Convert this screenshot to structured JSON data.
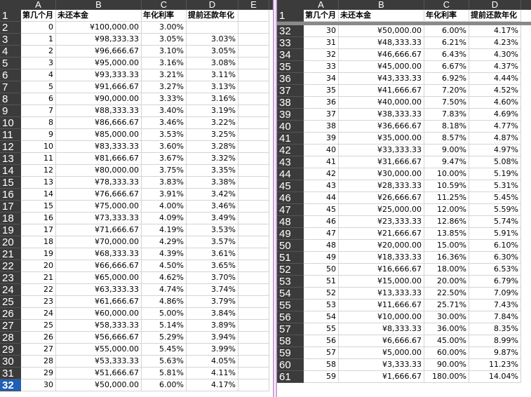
{
  "left": {
    "columns": [
      "A",
      "B",
      "C",
      "D",
      "E"
    ],
    "header_row": {
      "num": "1",
      "a": "第几个月",
      "b": "未还本金",
      "c": "年化利率",
      "d": "提前还款年化"
    },
    "active_row": "32",
    "rows": [
      {
        "num": "2",
        "a": "0",
        "b": "¥100,000.00",
        "c": "3.00%",
        "d": ""
      },
      {
        "num": "3",
        "a": "1",
        "b": "¥98,333.33",
        "c": "3.05%",
        "d": "3.03%"
      },
      {
        "num": "4",
        "a": "2",
        "b": "¥96,666.67",
        "c": "3.10%",
        "d": "3.05%"
      },
      {
        "num": "5",
        "a": "3",
        "b": "¥95,000.00",
        "c": "3.16%",
        "d": "3.08%"
      },
      {
        "num": "6",
        "a": "4",
        "b": "¥93,333.33",
        "c": "3.21%",
        "d": "3.11%"
      },
      {
        "num": "7",
        "a": "5",
        "b": "¥91,666.67",
        "c": "3.27%",
        "d": "3.13%"
      },
      {
        "num": "8",
        "a": "6",
        "b": "¥90,000.00",
        "c": "3.33%",
        "d": "3.16%"
      },
      {
        "num": "9",
        "a": "7",
        "b": "¥88,333.33",
        "c": "3.40%",
        "d": "3.19%"
      },
      {
        "num": "10",
        "a": "8",
        "b": "¥86,666.67",
        "c": "3.46%",
        "d": "3.22%"
      },
      {
        "num": "11",
        "a": "9",
        "b": "¥85,000.00",
        "c": "3.53%",
        "d": "3.25%"
      },
      {
        "num": "12",
        "a": "10",
        "b": "¥83,333.33",
        "c": "3.60%",
        "d": "3.28%"
      },
      {
        "num": "13",
        "a": "11",
        "b": "¥81,666.67",
        "c": "3.67%",
        "d": "3.32%"
      },
      {
        "num": "14",
        "a": "12",
        "b": "¥80,000.00",
        "c": "3.75%",
        "d": "3.35%"
      },
      {
        "num": "15",
        "a": "13",
        "b": "¥78,333.33",
        "c": "3.83%",
        "d": "3.38%"
      },
      {
        "num": "16",
        "a": "14",
        "b": "¥76,666.67",
        "c": "3.91%",
        "d": "3.42%"
      },
      {
        "num": "17",
        "a": "15",
        "b": "¥75,000.00",
        "c": "4.00%",
        "d": "3.46%"
      },
      {
        "num": "18",
        "a": "16",
        "b": "¥73,333.33",
        "c": "4.09%",
        "d": "3.49%"
      },
      {
        "num": "19",
        "a": "17",
        "b": "¥71,666.67",
        "c": "4.19%",
        "d": "3.53%"
      },
      {
        "num": "20",
        "a": "18",
        "b": "¥70,000.00",
        "c": "4.29%",
        "d": "3.57%"
      },
      {
        "num": "21",
        "a": "19",
        "b": "¥68,333.33",
        "c": "4.39%",
        "d": "3.61%"
      },
      {
        "num": "22",
        "a": "20",
        "b": "¥66,666.67",
        "c": "4.50%",
        "d": "3.65%"
      },
      {
        "num": "23",
        "a": "21",
        "b": "¥65,000.00",
        "c": "4.62%",
        "d": "3.70%"
      },
      {
        "num": "24",
        "a": "22",
        "b": "¥63,333.33",
        "c": "4.74%",
        "d": "3.74%"
      },
      {
        "num": "25",
        "a": "23",
        "b": "¥61,666.67",
        "c": "4.86%",
        "d": "3.79%"
      },
      {
        "num": "26",
        "a": "24",
        "b": "¥60,000.00",
        "c": "5.00%",
        "d": "3.84%"
      },
      {
        "num": "27",
        "a": "25",
        "b": "¥58,333.33",
        "c": "5.14%",
        "d": "3.89%"
      },
      {
        "num": "28",
        "a": "26",
        "b": "¥56,666.67",
        "c": "5.29%",
        "d": "3.94%"
      },
      {
        "num": "29",
        "a": "27",
        "b": "¥55,000.00",
        "c": "5.45%",
        "d": "3.99%"
      },
      {
        "num": "30",
        "a": "28",
        "b": "¥53,333.33",
        "c": "5.63%",
        "d": "4.05%"
      },
      {
        "num": "31",
        "a": "29",
        "b": "¥51,666.67",
        "c": "5.81%",
        "d": "4.11%"
      },
      {
        "num": "32",
        "a": "30",
        "b": "¥50,000.00",
        "c": "6.00%",
        "d": "4.17%"
      }
    ]
  },
  "right": {
    "columns": [
      "A",
      "B",
      "C",
      "D"
    ],
    "header_row": {
      "num": "1",
      "a": "第几个月",
      "b": "未还本金",
      "c": "年化利率",
      "d": "提前还款年化"
    },
    "rows": [
      {
        "num": "32",
        "a": "30",
        "b": "¥50,000.00",
        "c": "6.00%",
        "d": "4.17%"
      },
      {
        "num": "33",
        "a": "31",
        "b": "¥48,333.33",
        "c": "6.21%",
        "d": "4.23%"
      },
      {
        "num": "34",
        "a": "32",
        "b": "¥46,666.67",
        "c": "6.43%",
        "d": "4.30%"
      },
      {
        "num": "35",
        "a": "33",
        "b": "¥45,000.00",
        "c": "6.67%",
        "d": "4.37%"
      },
      {
        "num": "36",
        "a": "34",
        "b": "¥43,333.33",
        "c": "6.92%",
        "d": "4.44%"
      },
      {
        "num": "37",
        "a": "35",
        "b": "¥41,666.67",
        "c": "7.20%",
        "d": "4.52%"
      },
      {
        "num": "38",
        "a": "36",
        "b": "¥40,000.00",
        "c": "7.50%",
        "d": "4.60%"
      },
      {
        "num": "39",
        "a": "37",
        "b": "¥38,333.33",
        "c": "7.83%",
        "d": "4.69%"
      },
      {
        "num": "40",
        "a": "38",
        "b": "¥36,666.67",
        "c": "8.18%",
        "d": "4.77%"
      },
      {
        "num": "41",
        "a": "39",
        "b": "¥35,000.00",
        "c": "8.57%",
        "d": "4.87%"
      },
      {
        "num": "42",
        "a": "40",
        "b": "¥33,333.33",
        "c": "9.00%",
        "d": "4.97%"
      },
      {
        "num": "43",
        "a": "41",
        "b": "¥31,666.67",
        "c": "9.47%",
        "d": "5.08%"
      },
      {
        "num": "44",
        "a": "42",
        "b": "¥30,000.00",
        "c": "10.00%",
        "d": "5.19%"
      },
      {
        "num": "45",
        "a": "43",
        "b": "¥28,333.33",
        "c": "10.59%",
        "d": "5.31%"
      },
      {
        "num": "46",
        "a": "44",
        "b": "¥26,666.67",
        "c": "11.25%",
        "d": "5.45%"
      },
      {
        "num": "47",
        "a": "45",
        "b": "¥25,000.00",
        "c": "12.00%",
        "d": "5.59%"
      },
      {
        "num": "48",
        "a": "46",
        "b": "¥23,333.33",
        "c": "12.86%",
        "d": "5.74%"
      },
      {
        "num": "49",
        "a": "47",
        "b": "¥21,666.67",
        "c": "13.85%",
        "d": "5.91%"
      },
      {
        "num": "50",
        "a": "48",
        "b": "¥20,000.00",
        "c": "15.00%",
        "d": "6.10%"
      },
      {
        "num": "51",
        "a": "49",
        "b": "¥18,333.33",
        "c": "16.36%",
        "d": "6.30%"
      },
      {
        "num": "52",
        "a": "50",
        "b": "¥16,666.67",
        "c": "18.00%",
        "d": "6.53%"
      },
      {
        "num": "53",
        "a": "51",
        "b": "¥15,000.00",
        "c": "20.00%",
        "d": "6.79%"
      },
      {
        "num": "54",
        "a": "52",
        "b": "¥13,333.33",
        "c": "22.50%",
        "d": "7.09%"
      },
      {
        "num": "55",
        "a": "53",
        "b": "¥11,666.67",
        "c": "25.71%",
        "d": "7.43%"
      },
      {
        "num": "56",
        "a": "54",
        "b": "¥10,000.00",
        "c": "30.00%",
        "d": "7.84%"
      },
      {
        "num": "57",
        "a": "55",
        "b": "¥8,333.33",
        "c": "36.00%",
        "d": "8.35%"
      },
      {
        "num": "58",
        "a": "56",
        "b": "¥6,666.67",
        "c": "45.00%",
        "d": "8.99%"
      },
      {
        "num": "59",
        "a": "57",
        "b": "¥5,000.00",
        "c": "60.00%",
        "d": "9.87%"
      },
      {
        "num": "60",
        "a": "58",
        "b": "¥3,333.33",
        "c": "90.00%",
        "d": "11.23%"
      },
      {
        "num": "61",
        "a": "59",
        "b": "¥1,666.67",
        "c": "180.00%",
        "d": "14.04%"
      }
    ]
  }
}
